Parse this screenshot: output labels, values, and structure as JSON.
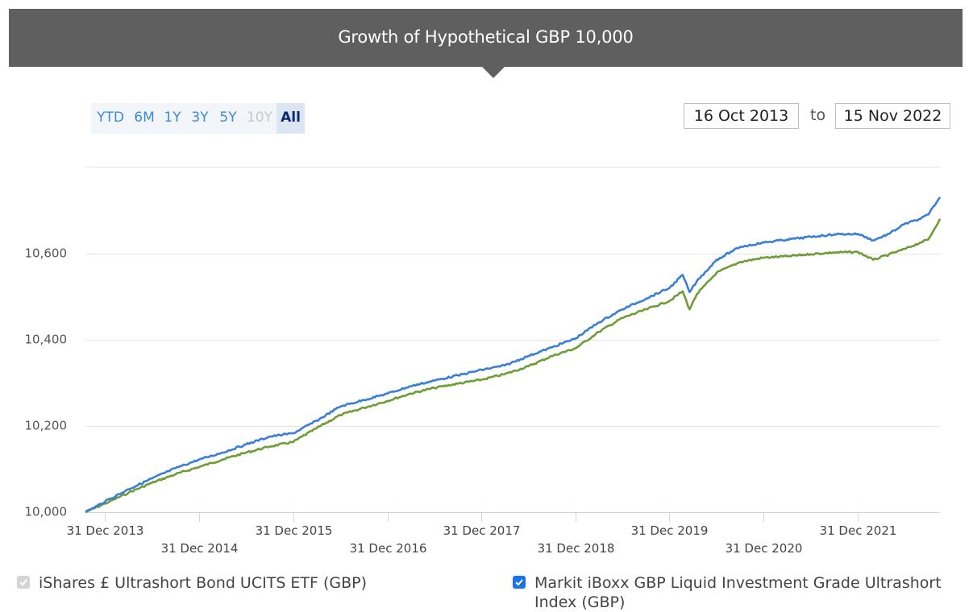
{
  "header": {
    "title": "Growth of Hypothetical GBP 10,000"
  },
  "range_tabs": [
    {
      "label": "YTD",
      "state": "enabled"
    },
    {
      "label": "6M",
      "state": "enabled"
    },
    {
      "label": "1Y",
      "state": "enabled"
    },
    {
      "label": "3Y",
      "state": "enabled"
    },
    {
      "label": "5Y",
      "state": "enabled"
    },
    {
      "label": "10Y",
      "state": "disabled"
    },
    {
      "label": "All",
      "state": "active"
    }
  ],
  "date_range": {
    "from": "16 Oct 2013",
    "to_label": "to",
    "to": "15 Nov 2022"
  },
  "legend": [
    {
      "label": "iShares £ Ultrashort Bond UCITS ETF (GBP)",
      "checked": true,
      "locked": true
    },
    {
      "label": "Markit iBoxx GBP Liquid Investment Grade Ultrashort Index (GBP)",
      "checked": true,
      "locked": false
    }
  ],
  "colors": {
    "fund": "#3a7fd5",
    "index": "#6e9c35",
    "grid": "#e4e4e4",
    "axis": "#ccd6eb",
    "checkbox": "#1a73e8"
  },
  "chart_data": {
    "type": "line",
    "xlim": [
      "2013-10-16",
      "2022-11-15"
    ],
    "ylim": [
      10000,
      10840
    ],
    "y_ticks": [
      10000,
      10200,
      10400,
      10600,
      10800
    ],
    "y_tick_labels": [
      "10,000",
      "10,200",
      "10,400",
      "10,600",
      ""
    ],
    "x_ticks": [
      "2013-12-31",
      "2014-12-31",
      "2015-12-31",
      "2016-12-31",
      "2017-12-31",
      "2018-12-31",
      "2019-12-31",
      "2020-12-31",
      "2021-12-31"
    ],
    "x_tick_labels": [
      "31 Dec 2013",
      "31 Dec 2014",
      "31 Dec 2015",
      "31 Dec 2016",
      "31 Dec 2017",
      "31 Dec 2018",
      "31 Dec 2019",
      "31 Dec 2020",
      "31 Dec 2021"
    ],
    "grid": true,
    "series": [
      {
        "name": "iShares £ Ultrashort Bond UCITS ETF (GBP)",
        "points": [
          [
            "2013-10-16",
            10000
          ],
          [
            "2014-01-01",
            10025
          ],
          [
            "2014-04-01",
            10053
          ],
          [
            "2014-07-01",
            10078
          ],
          [
            "2014-10-01",
            10102
          ],
          [
            "2015-01-01",
            10122
          ],
          [
            "2015-04-01",
            10138
          ],
          [
            "2015-07-01",
            10157
          ],
          [
            "2015-10-01",
            10175
          ],
          [
            "2016-01-01",
            10183
          ],
          [
            "2016-04-01",
            10212
          ],
          [
            "2016-07-01",
            10245
          ],
          [
            "2016-10-01",
            10260
          ],
          [
            "2017-01-01",
            10275
          ],
          [
            "2017-04-01",
            10292
          ],
          [
            "2017-07-01",
            10305
          ],
          [
            "2017-10-01",
            10317
          ],
          [
            "2018-01-01",
            10330
          ],
          [
            "2018-04-01",
            10340
          ],
          [
            "2018-07-01",
            10362
          ],
          [
            "2018-10-01",
            10382
          ],
          [
            "2019-01-01",
            10403
          ],
          [
            "2019-04-01",
            10440
          ],
          [
            "2019-07-01",
            10470
          ],
          [
            "2019-10-01",
            10495
          ],
          [
            "2020-01-01",
            10520
          ],
          [
            "2020-02-20",
            10550
          ],
          [
            "2020-03-18",
            10510
          ],
          [
            "2020-04-15",
            10535
          ],
          [
            "2020-07-01",
            10585
          ],
          [
            "2020-10-01",
            10615
          ],
          [
            "2021-01-01",
            10625
          ],
          [
            "2021-04-01",
            10632
          ],
          [
            "2021-07-01",
            10638
          ],
          [
            "2021-10-01",
            10644
          ],
          [
            "2022-01-01",
            10645
          ],
          [
            "2022-03-01",
            10630
          ],
          [
            "2022-05-01",
            10645
          ],
          [
            "2022-07-01",
            10668
          ],
          [
            "2022-09-01",
            10680
          ],
          [
            "2022-10-01",
            10690
          ],
          [
            "2022-11-15",
            10730
          ]
        ]
      },
      {
        "name": "Markit iBoxx GBP Liquid Investment Grade Ultrashort Index (GBP)",
        "points": [
          [
            "2013-10-16",
            10000
          ],
          [
            "2014-01-01",
            10020
          ],
          [
            "2014-04-01",
            10045
          ],
          [
            "2014-07-01",
            10068
          ],
          [
            "2014-10-01",
            10088
          ],
          [
            "2015-01-01",
            10105
          ],
          [
            "2015-04-01",
            10122
          ],
          [
            "2015-07-01",
            10138
          ],
          [
            "2015-10-01",
            10152
          ],
          [
            "2016-01-01",
            10163
          ],
          [
            "2016-04-01",
            10195
          ],
          [
            "2016-07-01",
            10225
          ],
          [
            "2016-10-01",
            10242
          ],
          [
            "2017-01-01",
            10258
          ],
          [
            "2017-04-01",
            10275
          ],
          [
            "2017-07-01",
            10288
          ],
          [
            "2017-10-01",
            10298
          ],
          [
            "2018-01-01",
            10307
          ],
          [
            "2018-04-01",
            10320
          ],
          [
            "2018-07-01",
            10338
          ],
          [
            "2018-10-01",
            10362
          ],
          [
            "2019-01-01",
            10380
          ],
          [
            "2019-04-01",
            10418
          ],
          [
            "2019-07-01",
            10450
          ],
          [
            "2019-10-01",
            10470
          ],
          [
            "2020-01-01",
            10490
          ],
          [
            "2020-02-20",
            10512
          ],
          [
            "2020-03-18",
            10470
          ],
          [
            "2020-04-15",
            10505
          ],
          [
            "2020-07-01",
            10555
          ],
          [
            "2020-10-01",
            10580
          ],
          [
            "2021-01-01",
            10590
          ],
          [
            "2021-04-01",
            10593
          ],
          [
            "2021-07-01",
            10598
          ],
          [
            "2021-10-01",
            10602
          ],
          [
            "2022-01-01",
            10603
          ],
          [
            "2022-03-01",
            10585
          ],
          [
            "2022-05-01",
            10597
          ],
          [
            "2022-07-01",
            10610
          ],
          [
            "2022-09-01",
            10625
          ],
          [
            "2022-10-01",
            10632
          ],
          [
            "2022-11-15",
            10680
          ]
        ]
      }
    ]
  }
}
